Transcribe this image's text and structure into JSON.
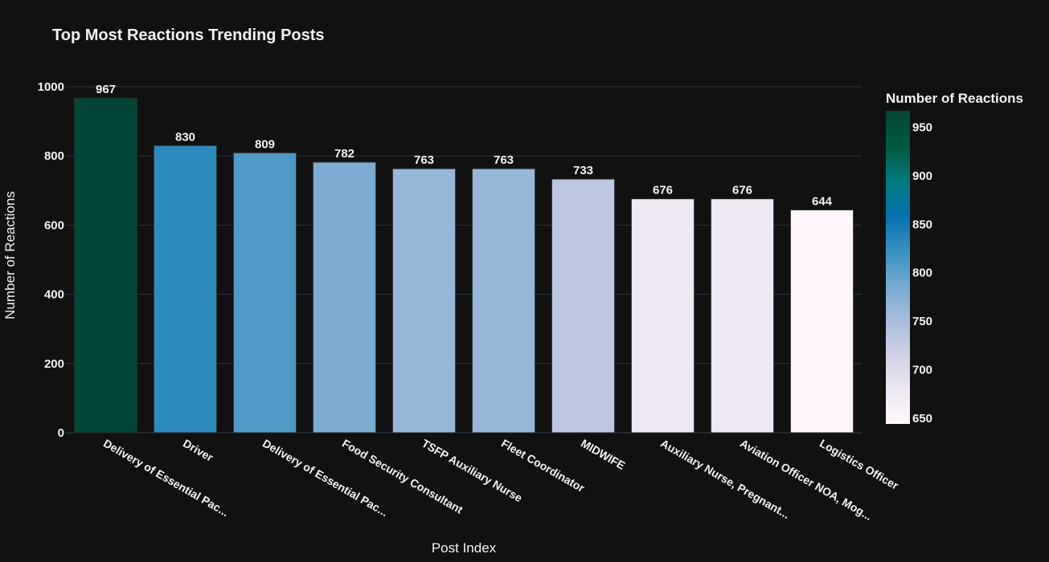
{
  "chart_data": {
    "type": "bar",
    "title": "Top Most Reactions Trending Posts",
    "xlabel": "Post Index",
    "ylabel": "Number of Reactions",
    "ylim": [
      0,
      1000
    ],
    "yticks": [
      0,
      200,
      400,
      600,
      800,
      1000
    ],
    "grid": true,
    "categories": [
      "Delivery of Essential Pac...",
      "Driver",
      "Delivery of Essential Pac...",
      "Food Security Consultant",
      "TSFP Auxiliary Nurse",
      "Fleet Coordinator",
      "MIDWIFE",
      "Auxiliary Nurse, Pregnant...",
      "Aviation Officer NOA, Mog...",
      "Logistics Officer"
    ],
    "values": [
      967,
      830,
      809,
      782,
      763,
      763,
      733,
      676,
      676,
      644
    ],
    "colorbar": {
      "title": "Number of Reactions",
      "range": [
        644,
        967
      ],
      "ticks": [
        650,
        700,
        750,
        800,
        850,
        900,
        950
      ],
      "placement": "right",
      "colors": [
        "#fff7fb",
        "#ece7f2",
        "#d0d1e6",
        "#a6bddb",
        "#74a9cf",
        "#3690c0",
        "#0570b0",
        "#017b7b",
        "#02573f",
        "#014636"
      ]
    }
  }
}
